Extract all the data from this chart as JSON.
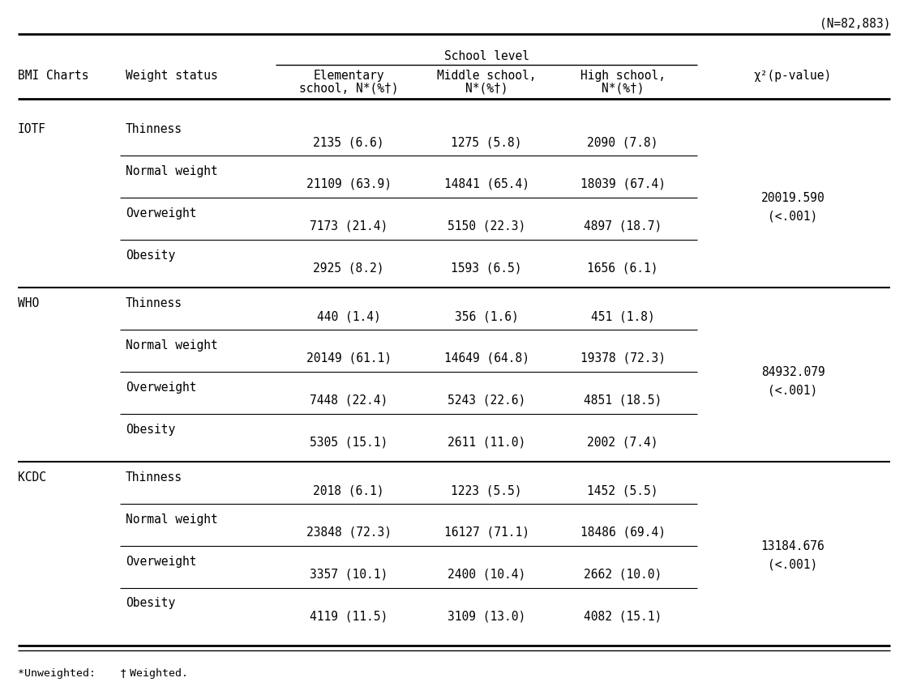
{
  "n_label": "(N=82,883)",
  "school_level_header": "School level",
  "col_headers_line1": [
    "BMI Charts",
    "Weight status",
    "Elementary",
    "Middle school,",
    "High school,",
    "χ²(p-value)"
  ],
  "col_headers_line2": [
    "",
    "",
    "school, N*(%†)",
    "N*(%†)",
    "N*(%†)",
    ""
  ],
  "rows": [
    {
      "bmi": "IOTF",
      "weight": "Thinness",
      "elem": "2135 (6.6)",
      "mid": "1275 (5.8)",
      "high": "2090 (7.8)",
      "chi2": null,
      "group_start": true,
      "thin_above": false
    },
    {
      "bmi": "",
      "weight": "Normal weight",
      "elem": "21109 (63.9)",
      "mid": "14841 (65.4)",
      "high": "18039 (67.4)",
      "chi2": "20019.590\n(<.001)",
      "group_start": false,
      "thin_above": true
    },
    {
      "bmi": "",
      "weight": "Overweight",
      "elem": "7173 (21.4)",
      "mid": "5150 (22.3)",
      "high": "4897 (18.7)",
      "chi2": null,
      "group_start": false,
      "thin_above": true
    },
    {
      "bmi": "",
      "weight": "Obesity",
      "elem": "2925 (8.2)",
      "mid": "1593 (6.5)",
      "high": "1656 (6.1)",
      "chi2": null,
      "group_start": false,
      "thin_above": true
    },
    {
      "bmi": "WHO",
      "weight": "Thinness",
      "elem": "440 (1.4)",
      "mid": "356 (1.6)",
      "high": "451 (1.8)",
      "chi2": null,
      "group_start": true,
      "thin_above": false
    },
    {
      "bmi": "",
      "weight": "Normal weight",
      "elem": "20149 (61.1)",
      "mid": "14649 (64.8)",
      "high": "19378 (72.3)",
      "chi2": "84932.079\n(<.001)",
      "group_start": false,
      "thin_above": true
    },
    {
      "bmi": "",
      "weight": "Overweight",
      "elem": "7448 (22.4)",
      "mid": "5243 (22.6)",
      "high": "4851 (18.5)",
      "chi2": null,
      "group_start": false,
      "thin_above": true
    },
    {
      "bmi": "",
      "weight": "Obesity",
      "elem": "5305 (15.1)",
      "mid": "2611 (11.0)",
      "high": "2002 (7.4)",
      "chi2": null,
      "group_start": false,
      "thin_above": true
    },
    {
      "bmi": "KCDC",
      "weight": "Thinness",
      "elem": "2018 (6.1)",
      "mid": "1223 (5.5)",
      "high": "1452 (5.5)",
      "chi2": null,
      "group_start": true,
      "thin_above": false
    },
    {
      "bmi": "",
      "weight": "Normal weight",
      "elem": "23848 (72.3)",
      "mid": "16127 (71.1)",
      "high": "18486 (69.4)",
      "chi2": "13184.676\n(<.001)",
      "group_start": false,
      "thin_above": true
    },
    {
      "bmi": "",
      "weight": "Overweight",
      "elem": "3357 (10.1)",
      "mid": "2400 (10.4)",
      "high": "2662 (10.0)",
      "chi2": null,
      "group_start": false,
      "thin_above": true
    },
    {
      "bmi": "",
      "weight": "Obesity",
      "elem": "4119 (11.5)",
      "mid": "3109 (13.0)",
      "high": "4082 (15.1)",
      "chi2": null,
      "group_start": false,
      "thin_above": true
    }
  ],
  "chi2_row_indices": [
    1,
    5,
    9
  ],
  "group_boundary_indices": [
    4,
    8
  ],
  "bg_color": "#ffffff",
  "text_color": "#000000",
  "font_size": 10.5,
  "font_family": "DejaVu Sans Mono",
  "footnote": "*Unweighted:  †Weighted."
}
